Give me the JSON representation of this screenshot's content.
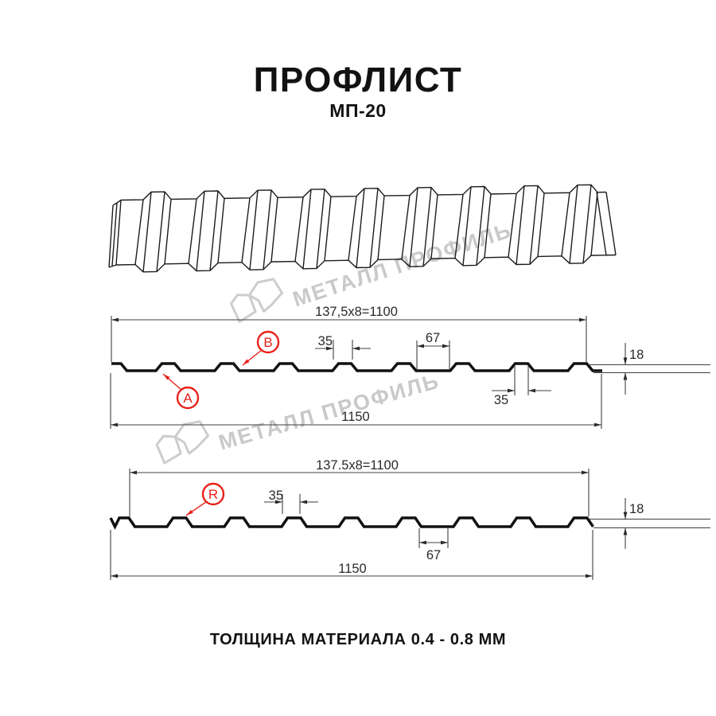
{
  "page": {
    "title": "ПРОФЛИСТ",
    "subtitle": "МП-20",
    "material_note": "ТОЛЩИНА МАТЕРИАЛА 0.4 - 0.8 ММ"
  },
  "watermark": {
    "text": "МЕТАЛЛ ПРОФИЛЬ"
  },
  "colors": {
    "accent_red": "#e8211a",
    "line": "#111111",
    "watermark": "#c9c9c9"
  },
  "profile_top": {
    "width_dim": "137,5x8=1100",
    "overall_width": "1150",
    "rib_top_width": "35",
    "valley_width": "67",
    "rib_bottom_width": "35",
    "height": "18",
    "side_labels": [
      "A",
      "B"
    ]
  },
  "profile_bottom": {
    "width_dim": "137.5x8=1100",
    "overall_width": "1150",
    "rib_top_width": "35",
    "valley_width": "67",
    "height": "18",
    "side_labels": [
      "R"
    ]
  }
}
